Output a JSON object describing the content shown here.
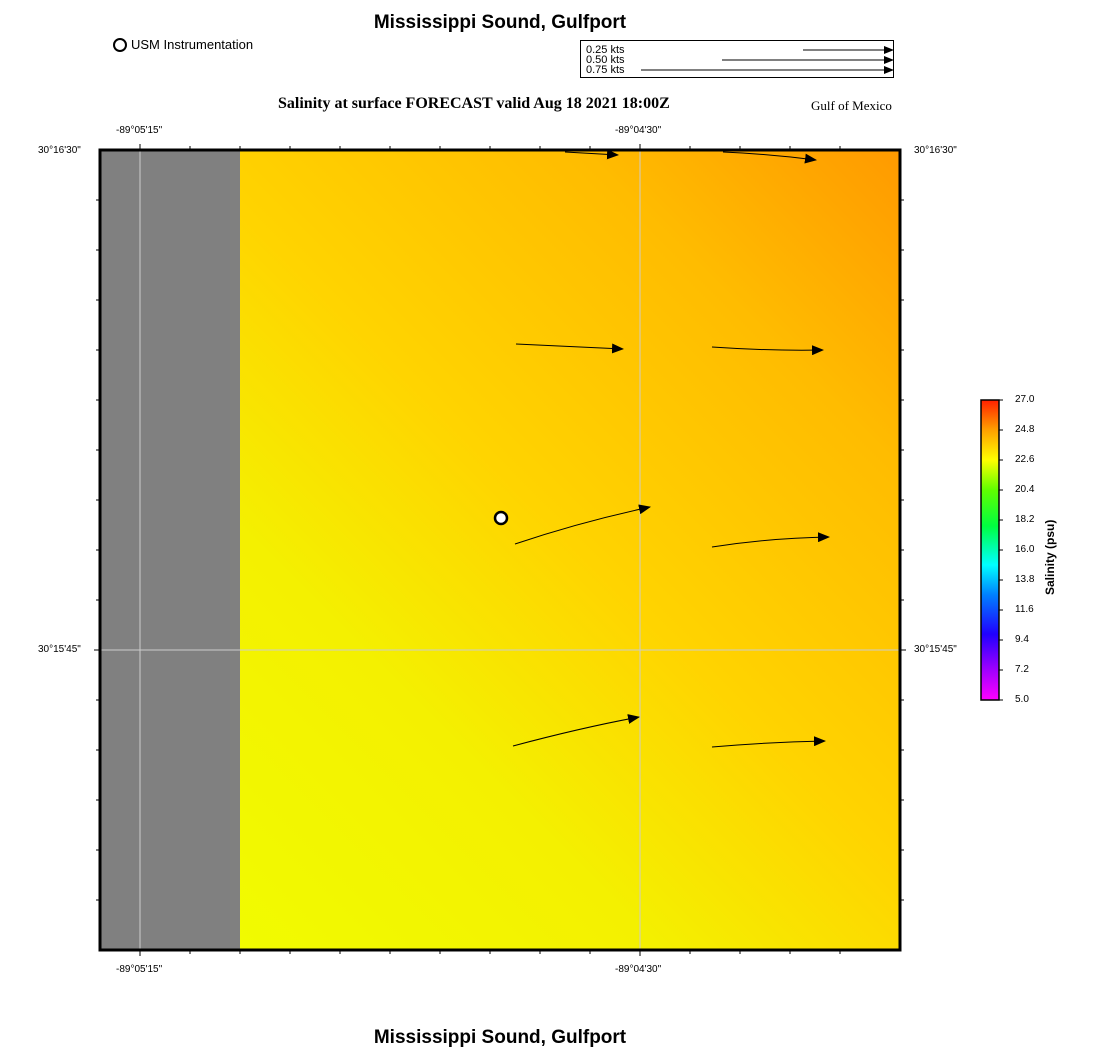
{
  "title_top": "Mississippi Sound, Gulfport",
  "title_bottom": "Mississippi Sound, Gulfport",
  "subtitle": "Salinity at surface FORECAST valid Aug 18 2021 18:00Z",
  "region_label": "Gulf of Mexico",
  "instrument_legend": "USM Instrumentation",
  "vector_scale": {
    "labels": [
      "0.25 kts",
      "0.50 kts",
      "0.75 kts"
    ],
    "values_kts": [
      0.25,
      0.5,
      0.75
    ]
  },
  "axes": {
    "lon_ticks": [
      "-89°05'15\"",
      "-89°04'30\""
    ],
    "lat_ticks": [
      "30°16'30\"",
      "30°15'45\""
    ]
  },
  "colorbar": {
    "title": "Salinity (psu)",
    "ticks": [
      "27.0",
      "24.8",
      "22.6",
      "20.4",
      "18.2",
      "16.0",
      "13.8",
      "11.6",
      "9.4",
      "7.2",
      "5.0"
    ],
    "min": 5.0,
    "max": 27.0
  },
  "colors": {
    "land": "#808080",
    "salinity_low_water": "#f0ff00",
    "salinity_high_water": "#ffa000",
    "frame": "#000000",
    "grid": "#cccccc"
  },
  "instrument_site": {
    "name": "USM Instrumentation"
  }
}
